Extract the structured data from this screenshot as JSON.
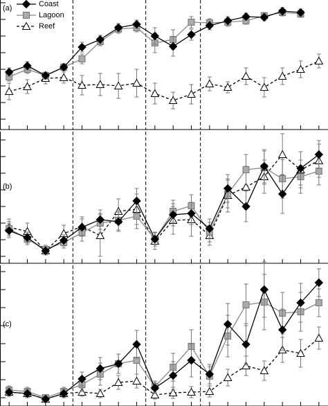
{
  "chart_data": [
    {
      "type": "line",
      "label": "(a)",
      "legend": "upper left",
      "x": [
        1,
        2,
        3,
        4,
        5,
        6,
        7,
        8,
        9,
        10,
        11,
        12,
        13,
        14,
        15,
        16,
        17,
        18
      ],
      "xlim": [
        0.5,
        18.5
      ],
      "xticks": [
        1,
        2,
        3,
        4,
        5,
        6,
        7,
        8,
        9,
        10,
        11,
        12,
        13,
        14,
        15,
        16,
        17,
        18
      ],
      "vlines": [
        4.5,
        8.5,
        11.5
      ],
      "ylim": [
        0,
        187
      ],
      "yticks": [
        15,
        39,
        63,
        87,
        111,
        135,
        159,
        183
      ],
      "series": [
        {
          "name": "Reef",
          "marker": "triangle",
          "dashed": true,
          "color": "#000000",
          "fill": "#ffffff",
          "values": [
            55,
            62,
            74,
            75,
            64,
            65,
            63,
            67,
            52,
            42,
            51,
            66,
            61,
            77,
            61,
            77,
            87,
            99
          ],
          "errors": [
            12,
            10,
            8,
            8,
            14,
            16,
            18,
            20,
            15,
            12,
            14,
            10,
            8,
            12,
            14,
            12,
            12,
            10
          ]
        },
        {
          "name": "Lagoon",
          "marker": "square",
          "dashed": false,
          "color": "#888888",
          "fill": "#aaaaaa",
          "values": [
            76,
            87,
            78,
            90,
            102,
            127,
            145,
            147,
            125,
            130,
            155,
            154,
            155,
            157,
            164,
            169,
            167,
            null
          ],
          "errors": [
            6,
            6,
            5,
            5,
            7,
            6,
            6,
            6,
            14,
            14,
            8,
            6,
            6,
            5,
            5,
            5,
            5,
            null
          ]
        },
        {
          "name": "Coast",
          "marker": "diamond",
          "dashed": false,
          "color": "#000000",
          "fill": "#000000",
          "values": [
            83,
            92,
            78,
            90,
            119,
            130,
            147,
            152,
            135,
            120,
            137,
            150,
            157,
            163,
            162,
            171,
            169,
            null
          ],
          "errors": [
            6,
            6,
            5,
            5,
            7,
            6,
            6,
            6,
            12,
            14,
            8,
            6,
            6,
            5,
            5,
            5,
            5,
            null
          ]
        }
      ]
    },
    {
      "type": "line",
      "label": "(b)",
      "x": [
        1,
        2,
        3,
        4,
        5,
        6,
        7,
        8,
        9,
        10,
        11,
        12,
        13,
        14,
        15,
        16,
        17,
        18
      ],
      "xlim": [
        0.5,
        18.5
      ],
      "xticks": [
        1,
        2,
        3,
        4,
        5,
        6,
        7,
        8,
        9,
        10,
        11,
        12,
        13,
        14,
        15,
        16,
        17,
        18
      ],
      "vlines": [
        4.5,
        8.5,
        11.5
      ],
      "ylim": [
        0,
        190
      ],
      "yticks": [
        10,
        34,
        58,
        82,
        106,
        130,
        154,
        178
      ],
      "series": [
        {
          "marker": "triangle",
          "dashed": true,
          "color": "#000000",
          "fill": "#ffffff",
          "values": [
            52,
            46,
            18,
            43,
            53,
            40,
            75,
            78,
            32,
            62,
            63,
            40,
            98,
            110,
            125,
            157,
            135,
            148
          ],
          "errors": [
            12,
            12,
            6,
            12,
            14,
            30,
            18,
            22,
            12,
            20,
            24,
            14,
            24,
            30,
            24,
            30,
            26,
            24
          ]
        },
        {
          "marker": "square",
          "dashed": false,
          "color": "#888888",
          "fill": "#aaaaaa",
          "values": [
            50,
            35,
            20,
            30,
            44,
            58,
            62,
            68,
            35,
            75,
            83,
            45,
            100,
            135,
            138,
            122,
            125,
            133
          ],
          "errors": [
            10,
            8,
            6,
            8,
            12,
            14,
            14,
            18,
            10,
            16,
            16,
            14,
            20,
            22,
            24,
            28,
            24,
            20
          ]
        },
        {
          "marker": "diamond",
          "dashed": false,
          "color": "#000000",
          "fill": "#000000",
          "values": [
            47,
            37,
            18,
            33,
            52,
            63,
            60,
            90,
            35,
            70,
            72,
            50,
            108,
            82,
            140,
            100,
            137,
            157
          ],
          "errors": [
            10,
            8,
            6,
            8,
            12,
            14,
            14,
            18,
            10,
            16,
            16,
            14,
            20,
            22,
            24,
            28,
            24,
            20
          ]
        }
      ]
    },
    {
      "type": "line",
      "label": "(c)",
      "x": [
        1,
        2,
        3,
        4,
        5,
        6,
        7,
        8,
        9,
        10,
        11,
        12,
        13,
        14,
        15,
        16,
        17,
        18
      ],
      "xlim": [
        0.5,
        18.5
      ],
      "xticks": [
        1,
        2,
        3,
        4,
        5,
        6,
        7,
        8,
        9,
        10,
        11,
        12,
        13,
        14,
        15,
        16,
        17,
        18
      ],
      "vlines": [
        4.5,
        8.5,
        11.5
      ],
      "ylim": [
        0,
        203
      ],
      "yticks": [
        12,
        38,
        64,
        90,
        116,
        142,
        168,
        194
      ],
      "series": [
        {
          "marker": "triangle",
          "dashed": true,
          "color": "#000000",
          "fill": "#ffffff",
          "values": [
            20,
            18,
            10,
            18,
            20,
            18,
            34,
            36,
            16,
            19,
            20,
            21,
            41,
            58,
            51,
            81,
            76,
            98
          ],
          "errors": [
            6,
            6,
            4,
            6,
            6,
            6,
            10,
            10,
            6,
            8,
            8,
            8,
            12,
            14,
            14,
            18,
            20,
            16
          ]
        },
        {
          "marker": "square",
          "dashed": false,
          "color": "#888888",
          "fill": "#aaaaaa",
          "values": [
            23,
            21,
            12,
            21,
            31,
            46,
            61,
            66,
            28,
            56,
            86,
            43,
            101,
            146,
            150,
            134,
            136,
            149
          ],
          "errors": [
            6,
            6,
            4,
            6,
            10,
            16,
            14,
            20,
            8,
            20,
            24,
            14,
            30,
            30,
            40,
            30,
            28,
            20
          ]
        },
        {
          "marker": "diamond",
          "dashed": false,
          "color": "#000000",
          "fill": "#000000",
          "values": [
            20,
            18,
            10,
            18,
            39,
            54,
            61,
            89,
            26,
            44,
            66,
            46,
            118,
            89,
            168,
            110,
            149,
            178
          ],
          "errors": [
            6,
            6,
            4,
            6,
            10,
            16,
            14,
            20,
            8,
            20,
            24,
            14,
            30,
            30,
            40,
            30,
            28,
            20
          ]
        }
      ]
    }
  ]
}
